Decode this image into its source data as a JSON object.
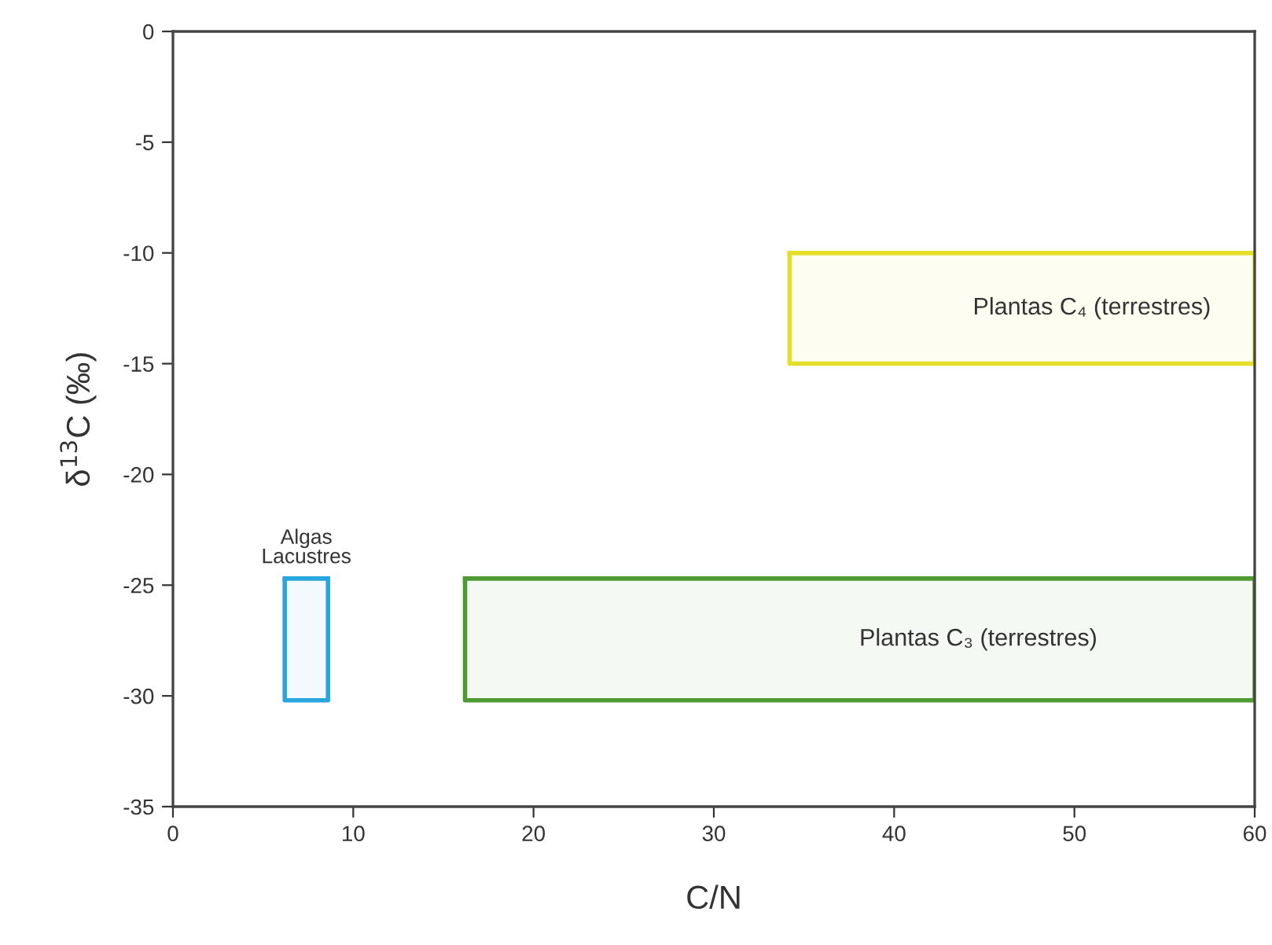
{
  "chart_data": {
    "type": "line",
    "xlabel": "C/N",
    "ylabel": "δ$^{13}$C (‰)",
    "xlim": [
      0,
      60
    ],
    "ylim": [
      -35,
      0
    ],
    "xticks": [
      0,
      10,
      20,
      30,
      40,
      50,
      60
    ],
    "yticks": [
      -35,
      -30,
      -25,
      -20,
      -15,
      -10,
      -5,
      0
    ],
    "grid": false,
    "legend": false,
    "marker": "none",
    "line_style": "solid",
    "series": [
      {
        "name": "Algas\nLacustres",
        "color": "#2aa6de",
        "x": [
          6.2,
          8.6
        ],
        "values": [
          -24.7,
          -24.7
        ],
        "lower": [
          -30.2,
          -30.2
        ],
        "upper": [
          -24.7,
          -24.7
        ]
      },
      {
        "name": "Plantas C₃ (terrestres)",
        "color": "#4f9a32",
        "x": [
          16.2,
          60
        ],
        "values": [
          -24.7,
          -24.7
        ],
        "lower": [
          -30.2,
          -30.2
        ],
        "upper": [
          -24.7,
          -24.7
        ]
      },
      {
        "name": "Plantas C₄ (terrestres)",
        "color": "#e6df2a",
        "x": [
          34.2,
          60
        ],
        "values": [
          -10,
          -10
        ],
        "lower": [
          -15,
          -15
        ],
        "upper": [
          -10,
          -10
        ]
      }
    ]
  }
}
